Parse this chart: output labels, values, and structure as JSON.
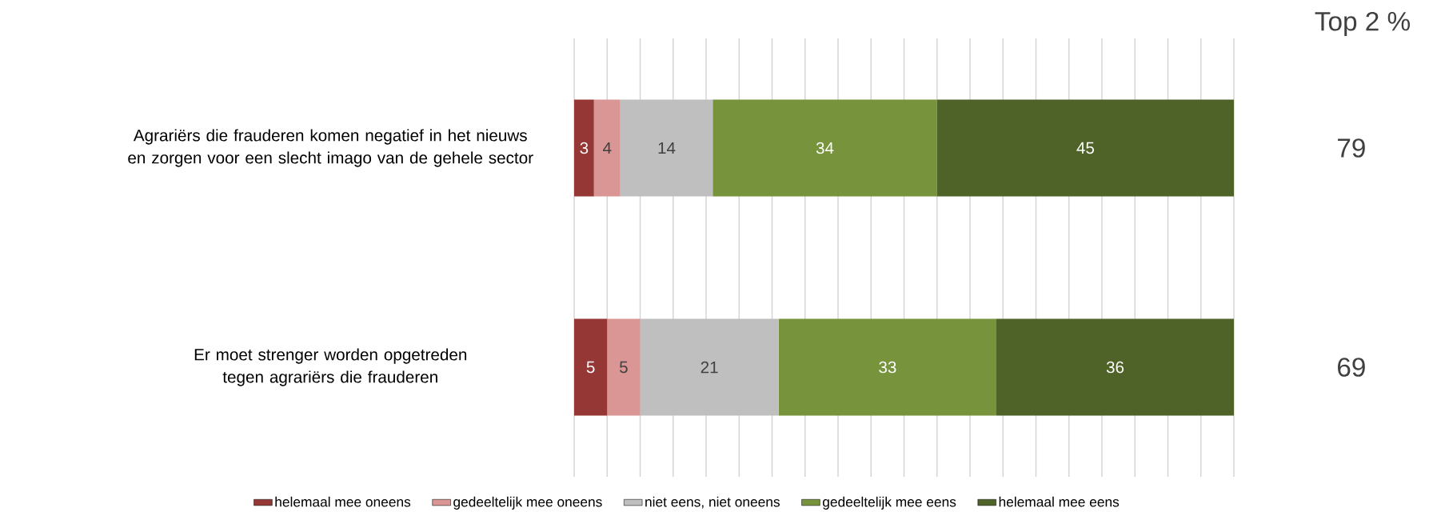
{
  "chart_data": {
    "type": "bar",
    "orientation": "horizontal",
    "stacked": true,
    "title": "Top 2 %",
    "categories": [
      "Agrariërs die frauderen komen negatief in het nieuws en zorgen voor een slecht imago van de gehele sector",
      "Er moet strenger worden opgetreden tegen agrariërs die frauderen"
    ],
    "series": [
      {
        "name": "helemaal mee oneens",
        "color": "#953735",
        "values": [
          3,
          5
        ]
      },
      {
        "name": "gedeeltelijk mee oneens",
        "color": "#d99694",
        "values": [
          4,
          5
        ]
      },
      {
        "name": "niet eens, niet oneens",
        "color": "#bfbfbf",
        "values": [
          14,
          21
        ]
      },
      {
        "name": "gedeeltelijk mee eens",
        "color": "#77933c",
        "values": [
          34,
          33
        ]
      },
      {
        "name": "helemaal mee eens",
        "color": "#4f6228",
        "values": [
          45,
          36
        ]
      }
    ],
    "grid": "x",
    "data_labels": true,
    "tick_labels": "y",
    "legend": "bottom",
    "annotations": [
      "79",
      "69"
    ]
  }
}
